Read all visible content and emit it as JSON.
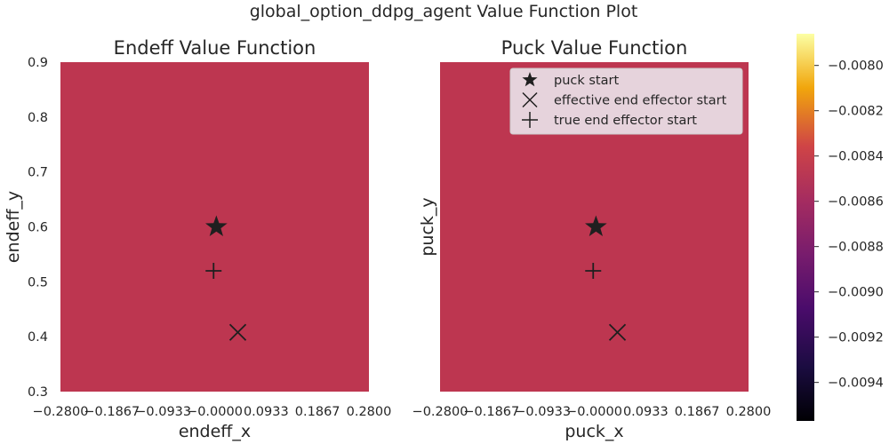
{
  "figure": {
    "title": "global_option_ddpg_agent Value Function Plot"
  },
  "colors": {
    "heatmap_fill": "#bd3650",
    "marker": "#1f1f1f",
    "text": "#262626",
    "legend_bg": "#e6d3dc",
    "legend_border": "#cccccc"
  },
  "chart_data": [
    {
      "type": "heatmap",
      "title": "Endeff Value Function",
      "xlabel": "endeff_x",
      "ylabel": "endeff_y",
      "xlim": [
        -0.28,
        0.28
      ],
      "ylim": [
        0.3,
        0.9
      ],
      "xticks": [
        -0.28,
        -0.1867,
        -0.0933,
        0.0,
        0.0933,
        0.1867,
        0.28
      ],
      "xtick_labels": [
        "−0.2800",
        "−0.1867",
        "−0.0933",
        "−0.0000",
        "0.0933",
        "0.1867",
        "0.2800"
      ],
      "yticks": [
        0.3,
        0.4,
        0.5,
        0.6,
        0.7,
        0.8,
        0.9
      ],
      "ytick_labels": [
        "0.3",
        "0.4",
        "0.5",
        "0.6",
        "0.7",
        "0.8",
        "0.9"
      ],
      "show_yticks": true,
      "value": -0.00875,
      "markers": [
        {
          "name": "puck start",
          "symbol": "star",
          "x": 0.003,
          "y": 0.6
        },
        {
          "name": "effective end effector start",
          "symbol": "x",
          "x": 0.042,
          "y": 0.408
        },
        {
          "name": "true end effector start",
          "symbol": "plus",
          "x": -0.002,
          "y": 0.52
        }
      ],
      "legend": false,
      "grid": false
    },
    {
      "type": "heatmap",
      "title": "Puck Value Function",
      "xlabel": "puck_x",
      "ylabel": "puck_y",
      "xlim": [
        -0.28,
        0.28
      ],
      "ylim": [
        0.3,
        0.9
      ],
      "xticks": [
        -0.28,
        -0.1867,
        -0.0933,
        0.0,
        0.0933,
        0.1867,
        0.28
      ],
      "xtick_labels": [
        "−0.2800",
        "−0.1867",
        "−0.0933",
        "−0.0000",
        "0.0933",
        "0.1867",
        "0.2800"
      ],
      "yticks": [],
      "ytick_labels": [],
      "show_yticks": false,
      "value": -0.00875,
      "markers": [
        {
          "name": "puck start",
          "symbol": "star",
          "x": 0.003,
          "y": 0.6
        },
        {
          "name": "effective end effector start",
          "symbol": "x",
          "x": 0.042,
          "y": 0.408
        },
        {
          "name": "true end effector start",
          "symbol": "plus",
          "x": -0.002,
          "y": 0.52
        }
      ],
      "legend": true,
      "legend_position": "top-right",
      "legend_entries": [
        {
          "symbol": "star",
          "label": "puck start"
        },
        {
          "symbol": "x",
          "label": "effective end effector start"
        },
        {
          "symbol": "plus",
          "label": "true end effector start"
        }
      ],
      "grid": false
    }
  ],
  "colorbar": {
    "colormap": "inferno",
    "range": [
      -0.00957,
      -0.00786
    ],
    "ticks": [
      -0.008,
      -0.0082,
      -0.0084,
      -0.0086,
      -0.0088,
      -0.009,
      -0.0092,
      -0.0094
    ],
    "tick_labels": [
      "−0.0080",
      "−0.0082",
      "−0.0084",
      "−0.0086",
      "−0.0088",
      "−0.0090",
      "−0.0092",
      "−0.0094"
    ]
  }
}
